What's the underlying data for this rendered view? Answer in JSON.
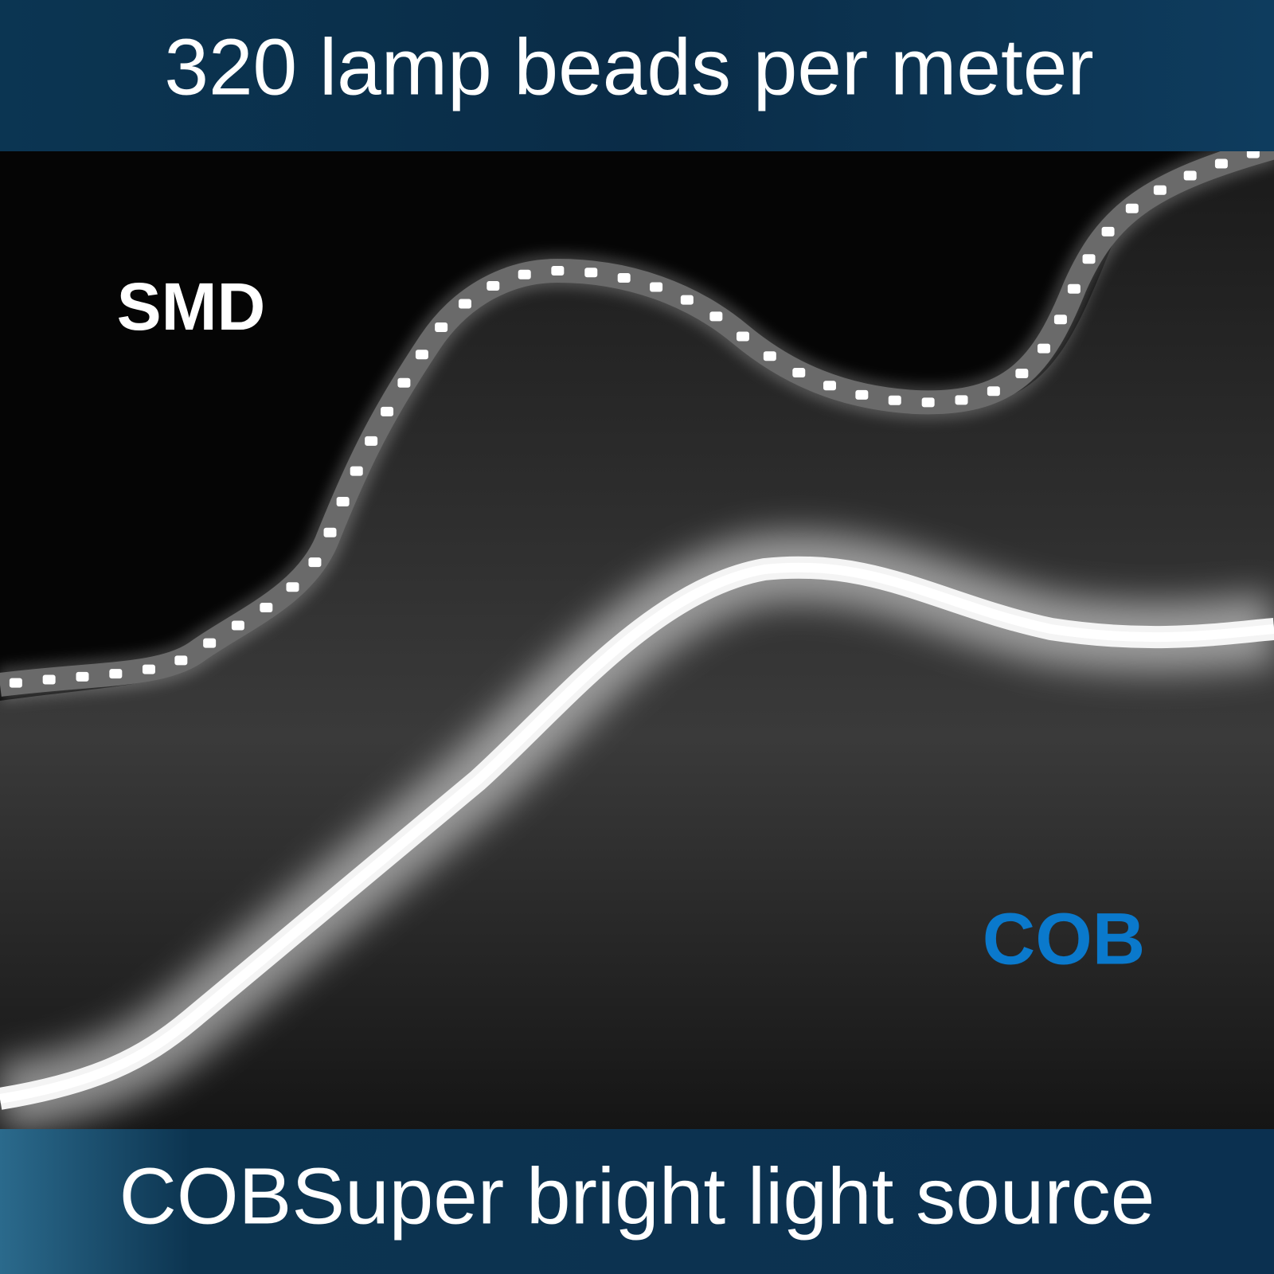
{
  "header": {
    "title": "320 lamp beads per meter"
  },
  "labels": {
    "smd": "SMD",
    "cob": "COB"
  },
  "footer": {
    "title": "COBSuper bright light source"
  }
}
